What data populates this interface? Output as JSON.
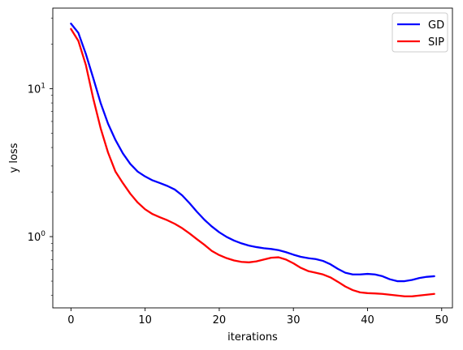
{
  "chart_data": {
    "type": "line",
    "xlabel": "iterations",
    "ylabel": "y loss",
    "xlim": [
      -2.45,
      51.45
    ],
    "ylim": [
      0.33,
      35
    ],
    "yscale": "log",
    "grid": false,
    "legend_position": "top-right",
    "x_ticks": [
      {
        "value": 0,
        "label": "0"
      },
      {
        "value": 10,
        "label": "10"
      },
      {
        "value": 20,
        "label": "20"
      },
      {
        "value": 30,
        "label": "30"
      },
      {
        "value": 40,
        "label": "40"
      },
      {
        "value": 50,
        "label": "50"
      }
    ],
    "y_major_ticks": [
      {
        "value": 1,
        "base": "10",
        "exp": "0"
      },
      {
        "value": 10,
        "base": "10",
        "exp": "1"
      }
    ],
    "y_minor_ticks": [
      0.4,
      0.5,
      0.6,
      0.7,
      0.8,
      0.9,
      2,
      3,
      4,
      5,
      6,
      7,
      8,
      9,
      20,
      30
    ],
    "x": [
      0,
      1,
      2,
      3,
      4,
      5,
      6,
      7,
      8,
      9,
      10,
      11,
      12,
      13,
      14,
      15,
      16,
      17,
      18,
      19,
      20,
      21,
      22,
      23,
      24,
      25,
      26,
      27,
      28,
      29,
      30,
      31,
      32,
      33,
      34,
      35,
      36,
      37,
      38,
      39,
      40,
      41,
      42,
      43,
      44,
      45,
      46,
      47,
      48,
      49
    ],
    "series": [
      {
        "name": "GD",
        "color": "#0000ff",
        "values": [
          27.5,
          23.8,
          17.2,
          11.8,
          8.0,
          5.8,
          4.5,
          3.65,
          3.1,
          2.75,
          2.55,
          2.4,
          2.3,
          2.2,
          2.08,
          1.9,
          1.68,
          1.47,
          1.3,
          1.17,
          1.07,
          0.995,
          0.94,
          0.9,
          0.87,
          0.85,
          0.835,
          0.825,
          0.81,
          0.785,
          0.755,
          0.73,
          0.715,
          0.705,
          0.685,
          0.65,
          0.605,
          0.57,
          0.555,
          0.555,
          0.56,
          0.555,
          0.54,
          0.515,
          0.5,
          0.5,
          0.51,
          0.525,
          0.535,
          0.54
        ]
      },
      {
        "name": "SIP",
        "color": "#ff0000",
        "values": [
          25.3,
          21.0,
          14.5,
          8.6,
          5.4,
          3.7,
          2.75,
          2.3,
          1.95,
          1.7,
          1.53,
          1.42,
          1.35,
          1.29,
          1.22,
          1.14,
          1.05,
          0.96,
          0.88,
          0.8,
          0.75,
          0.715,
          0.69,
          0.675,
          0.67,
          0.68,
          0.7,
          0.72,
          0.725,
          0.7,
          0.66,
          0.615,
          0.585,
          0.57,
          0.555,
          0.53,
          0.495,
          0.46,
          0.435,
          0.42,
          0.415,
          0.413,
          0.41,
          0.405,
          0.4,
          0.395,
          0.395,
          0.4,
          0.405,
          0.41
        ]
      }
    ]
  }
}
